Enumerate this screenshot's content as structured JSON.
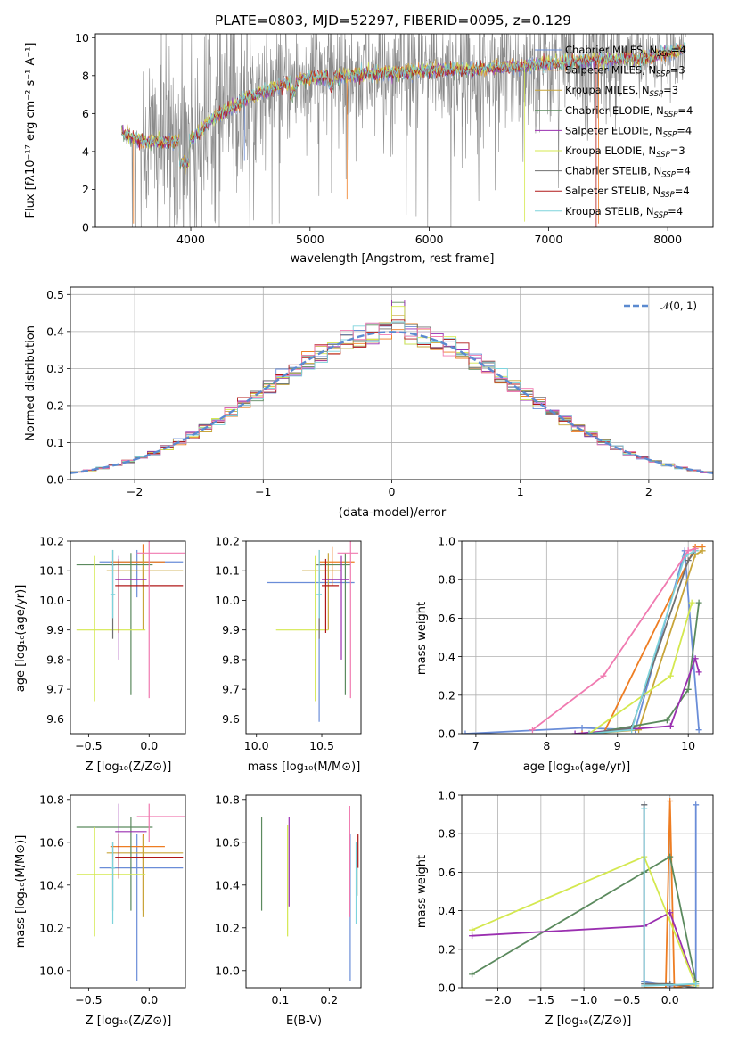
{
  "colors": {
    "chabrier_miles": "#6a8dd8",
    "salpeter_miles": "#ee7d22",
    "kroupa_miles": "#c8a53a",
    "chabrier_elodie": "#5b8a5e",
    "salpeter_elodie": "#9a2fb0",
    "kroupa_elodie": "#d4e84f",
    "chabrier_stelib": "#707070",
    "salpeter_stelib": "#b01818",
    "kroupa_stelib": "#7dd3dc",
    "pink": "#f07ab0",
    "gauss": "#5b8ad0"
  },
  "chart_data": [
    {
      "type": "line",
      "title": "PLATE=0803, MJD=52297, FIBERID=0095, z=0.129",
      "xlabel": "wavelength [Angstrom, rest frame]",
      "ylabel": "Flux [fλ10⁻¹⁷ erg cm⁻² s⁻¹ A⁻¹]",
      "xlim": [
        3200,
        8380
      ],
      "ylim": [
        0,
        10.2
      ],
      "xticks": [
        "4000",
        "5000",
        "6000",
        "7000",
        "8000"
      ],
      "yticks": [
        "0",
        "2",
        "4",
        "6",
        "8",
        "10"
      ],
      "legend_position": "right",
      "series": [
        {
          "name": "Chabrier MILES, N_SSP=4",
          "color": "#6a8dd8"
        },
        {
          "name": "Salpeter MILES, N_SSP=3",
          "color": "#ee7d22"
        },
        {
          "name": "Kroupa MILES, N_SSP=3",
          "color": "#c8a53a"
        },
        {
          "name": "Chabrier ELODIE, N_SSP=4",
          "color": "#5b8a5e"
        },
        {
          "name": "Salpeter ELODIE, N_SSP=4",
          "color": "#9a2fb0"
        },
        {
          "name": "Kroupa ELODIE, N_SSP=3",
          "color": "#d4e84f"
        },
        {
          "name": "Chabrier STELIB, N_SSP=4",
          "color": "#707070"
        },
        {
          "name": "Salpeter STELIB, N_SSP=4",
          "color": "#b01818"
        },
        {
          "name": "Kroupa STELIB, N_SSP=4",
          "color": "#7dd3dc"
        }
      ],
      "continuum": {
        "x": [
          3420,
          3600,
          3800,
          4000,
          4200,
          4500,
          4800,
          5000,
          5300,
          5600,
          6000,
          6300,
          6600,
          7000,
          7400,
          7800,
          8150
        ],
        "y": [
          5.0,
          4.5,
          4.5,
          4.6,
          5.8,
          6.9,
          7.6,
          7.9,
          8.0,
          8.1,
          8.3,
          8.3,
          8.4,
          8.6,
          8.8,
          8.9,
          9.4
        ]
      }
    },
    {
      "type": "histogram",
      "xlabel": "(data-model)/error",
      "ylabel": "Normed distribution",
      "xlim": [
        -2.5,
        2.5
      ],
      "ylim": [
        0,
        0.52
      ],
      "xticks": [
        "−2",
        "−1",
        "0",
        "1",
        "2"
      ],
      "yticks": [
        "0.0",
        "0.1",
        "0.2",
        "0.3",
        "0.4",
        "0.5"
      ],
      "legend": "𝒩(0, 1)",
      "gaussian": {
        "mean": 0,
        "sigma": 1
      },
      "bin_width": 0.1
    },
    {
      "type": "scatter",
      "xlabel": "Z [log₁₀(Z/Z⊙)]",
      "ylabel": "age  [log₁₀(age/yr)]",
      "xlim": [
        -0.65,
        0.3
      ],
      "ylim": [
        9.55,
        10.2
      ],
      "xticks": [
        "−0.5",
        "0.0"
      ],
      "yticks": [
        "9.6",
        "9.7",
        "9.8",
        "9.9",
        "10.0",
        "10.1",
        "10.2"
      ],
      "points": [
        {
          "x": -0.1,
          "y": 10.13,
          "xerr": [
            0.31,
            0.38
          ],
          "yerr": [
            0.12,
            0.04
          ],
          "color": "#6a8dd8"
        },
        {
          "x": -0.05,
          "y": 10.13,
          "xerr": [
            0.27,
            0.18
          ],
          "yerr": [
            0.08,
            0.06
          ],
          "color": "#ee7d22"
        },
        {
          "x": -0.05,
          "y": 10.1,
          "xerr": [
            0.3,
            0.33
          ],
          "yerr": [
            0.2,
            0.06
          ],
          "color": "#c8a53a"
        },
        {
          "x": -0.15,
          "y": 10.12,
          "xerr": [
            0.45,
            0.18
          ],
          "yerr": [
            0.44,
            0.04
          ],
          "color": "#5b8a5e"
        },
        {
          "x": -0.25,
          "y": 10.07,
          "xerr": [
            0.03,
            0.23
          ],
          "yerr": [
            0.27,
            0.08
          ],
          "color": "#9a2fb0"
        },
        {
          "x": -0.45,
          "y": 9.9,
          "xerr": [
            0.15,
            0.42
          ],
          "yerr": [
            0.24,
            0.25
          ],
          "color": "#d4e84f"
        },
        {
          "x": -0.3,
          "y": 10.12,
          "xerr": [
            0.02,
            0.02
          ],
          "yerr": [
            0.25,
            0.05
          ],
          "color": "#707070"
        },
        {
          "x": -0.25,
          "y": 10.05,
          "xerr": [
            0.03,
            0.53
          ],
          "yerr": [
            0.16,
            0.09
          ],
          "color": "#b01818"
        },
        {
          "x": -0.3,
          "y": 10.02,
          "xerr": [
            0.02,
            0.02
          ],
          "yerr": [
            0.08,
            0.15
          ],
          "color": "#7dd3dc"
        },
        {
          "x": 0.0,
          "y": 10.16,
          "xerr": [
            0.1,
            0.3
          ],
          "yerr": [
            0.49,
            0.04
          ],
          "color": "#f07ab0"
        }
      ]
    },
    {
      "type": "scatter",
      "xlabel": "mass [log₁₀(M/M⊙)]",
      "xlim": [
        9.92,
        10.8
      ],
      "ylim": [
        9.55,
        10.2
      ],
      "xticks": [
        "10.0",
        "10.5"
      ],
      "yticks": [
        "9.6",
        "9.7",
        "9.8",
        "9.9",
        "10.0",
        "10.1",
        "10.2"
      ],
      "points": [
        {
          "x": 10.48,
          "y": 10.06,
          "xerr": [
            0.4,
            0.27
          ],
          "yerr": [
            0.47,
            0.04
          ],
          "color": "#6a8dd8"
        },
        {
          "x": 10.58,
          "y": 10.13,
          "xerr": [
            0.1,
            0.17
          ],
          "yerr": [
            0.08,
            0.05
          ],
          "color": "#ee7d22"
        },
        {
          "x": 10.55,
          "y": 10.1,
          "xerr": [
            0.2,
            0.1
          ],
          "yerr": [
            0.2,
            0.06
          ],
          "color": "#c8a53a"
        },
        {
          "x": 10.68,
          "y": 10.12,
          "xerr": [
            0.18,
            0.04
          ],
          "yerr": [
            0.44,
            0.04
          ],
          "color": "#5b8a5e"
        },
        {
          "x": 10.65,
          "y": 10.07,
          "xerr": [
            0.15,
            0.06
          ],
          "yerr": [
            0.27,
            0.08
          ],
          "color": "#9a2fb0"
        },
        {
          "x": 10.45,
          "y": 9.9,
          "xerr": [
            0.3,
            0.1
          ],
          "yerr": [
            0.24,
            0.25
          ],
          "color": "#d4e84f"
        },
        {
          "x": 10.48,
          "y": 10.12,
          "xerr": [
            0.02,
            0.02
          ],
          "yerr": [
            0.25,
            0.05
          ],
          "color": "#707070"
        },
        {
          "x": 10.53,
          "y": 10.05,
          "xerr": [
            0.03,
            0.1
          ],
          "yerr": [
            0.16,
            0.09
          ],
          "color": "#b01818"
        },
        {
          "x": 10.48,
          "y": 10.02,
          "xerr": [
            0.02,
            0.02
          ],
          "yerr": [
            0.08,
            0.15
          ],
          "color": "#7dd3dc"
        },
        {
          "x": 10.72,
          "y": 10.16,
          "xerr": [
            0.1,
            0.06
          ],
          "yerr": [
            0.49,
            0.04
          ],
          "color": "#f07ab0"
        }
      ]
    },
    {
      "type": "line",
      "xlabel": "age  [log₁₀(age/yr)]",
      "ylabel": "mass weight",
      "xlim": [
        6.8,
        10.35
      ],
      "ylim": [
        0,
        1
      ],
      "xticks": [
        "7",
        "8",
        "9",
        "10"
      ],
      "yticks": [
        "0.0",
        "0.2",
        "0.4",
        "0.6",
        "0.8",
        "1.0"
      ],
      "series": [
        {
          "x": [
            6.85,
            8.5,
            9.25,
            9.95,
            10.15
          ],
          "y": [
            0.0,
            0.03,
            0.02,
            0.95,
            0.02
          ],
          "color": "#6a8dd8"
        },
        {
          "x": [
            8.5,
            8.8,
            10.1,
            10.2
          ],
          "y": [
            0.0,
            0.0,
            0.97,
            0.97
          ],
          "color": "#ee7d22"
        },
        {
          "x": [
            8.6,
            9.3,
            10.1,
            10.2
          ],
          "y": [
            0.0,
            0.02,
            0.93,
            0.95
          ],
          "color": "#c8a53a"
        },
        {
          "x": [
            8.6,
            9.7,
            10.0,
            10.15
          ],
          "y": [
            0.0,
            0.07,
            0.23,
            0.68
          ],
          "color": "#5b8a5e"
        },
        {
          "x": [
            8.4,
            9.75,
            10.1,
            10.15
          ],
          "y": [
            0.0,
            0.04,
            0.39,
            0.32
          ],
          "color": "#9a2fb0"
        },
        {
          "x": [
            8.6,
            9.75,
            10.05
          ],
          "y": [
            0.0,
            0.3,
            0.68
          ],
          "color": "#d4e84f"
        },
        {
          "x": [
            8.6,
            9.2,
            10.0,
            10.1
          ],
          "y": [
            0.0,
            0.03,
            0.9,
            0.95
          ],
          "color": "#707070"
        },
        {
          "x": [
            8.6,
            9.2,
            9.95,
            10.1
          ],
          "y": [
            0.0,
            0.02,
            0.92,
            0.95
          ],
          "color": "#7dd3dc"
        },
        {
          "x": [
            7.8,
            8.8,
            10.0,
            10.1
          ],
          "y": [
            0.02,
            0.3,
            0.95,
            0.96
          ],
          "color": "#f07ab0"
        }
      ]
    },
    {
      "type": "scatter",
      "xlabel": "Z [log₁₀(Z/Z⊙)]",
      "ylabel": "mass [log₁₀(M/M⊙)]",
      "xlim": [
        -0.65,
        0.3
      ],
      "ylim": [
        9.92,
        10.82
      ],
      "xticks": [
        "−0.5",
        "0.0"
      ],
      "yticks": [
        "10.0",
        "10.2",
        "10.4",
        "10.6",
        "10.8"
      ],
      "points": [
        {
          "x": -0.1,
          "y": 10.48,
          "xerr": [
            0.31,
            0.38
          ],
          "yerr": [
            0.53,
            0.16
          ],
          "color": "#6a8dd8"
        },
        {
          "x": -0.05,
          "y": 10.58,
          "xerr": [
            0.27,
            0.18
          ],
          "yerr": [
            0.3,
            0.06
          ],
          "color": "#ee7d22"
        },
        {
          "x": -0.05,
          "y": 10.55,
          "xerr": [
            0.3,
            0.33
          ],
          "yerr": [
            0.3,
            0.08
          ],
          "color": "#c8a53a"
        },
        {
          "x": -0.15,
          "y": 10.67,
          "xerr": [
            0.45,
            0.18
          ],
          "yerr": [
            0.39,
            0.05
          ],
          "color": "#5b8a5e"
        },
        {
          "x": -0.25,
          "y": 10.65,
          "xerr": [
            0.03,
            0.23
          ],
          "yerr": [
            0.16,
            0.13
          ],
          "color": "#9a2fb0"
        },
        {
          "x": -0.45,
          "y": 10.45,
          "xerr": [
            0.15,
            0.42
          ],
          "yerr": [
            0.29,
            0.22
          ],
          "color": "#d4e84f"
        },
        {
          "x": -0.3,
          "y": 10.48,
          "xerr": [
            0.02,
            0.02
          ],
          "yerr": [
            0.2,
            0.12
          ],
          "color": "#707070"
        },
        {
          "x": -0.25,
          "y": 10.53,
          "xerr": [
            0.03,
            0.53
          ],
          "yerr": [
            0.1,
            0.11
          ],
          "color": "#b01818"
        },
        {
          "x": -0.3,
          "y": 10.48,
          "xerr": [
            0.02,
            0.02
          ],
          "yerr": [
            0.26,
            0.12
          ],
          "color": "#7dd3dc"
        },
        {
          "x": 0.0,
          "y": 10.72,
          "xerr": [
            0.1,
            0.3
          ],
          "yerr": [
            0.12,
            0.06
          ],
          "color": "#f07ab0"
        }
      ]
    },
    {
      "type": "scatter",
      "xlabel": "E(B-V)",
      "xlim": [
        0.03,
        0.265
      ],
      "ylim": [
        9.92,
        10.82
      ],
      "xticks": [
        "0.1",
        "0.2"
      ],
      "yticks": [
        "10.0",
        "10.2",
        "10.4",
        "10.6",
        "10.8"
      ],
      "points": [
        {
          "x": 0.062,
          "y": 10.5,
          "yerr": [
            0.22,
            0.22
          ],
          "color": "#5b8a5e"
        },
        {
          "x": 0.115,
          "y": 10.42,
          "yerr": [
            0.26,
            0.26
          ],
          "color": "#d4e84f"
        },
        {
          "x": 0.118,
          "y": 10.5,
          "yerr": [
            0.2,
            0.22
          ],
          "color": "#9a2fb0"
        },
        {
          "x": 0.243,
          "y": 10.48,
          "yerr": [
            0.53,
            0.16
          ],
          "color": "#6a8dd8"
        },
        {
          "x": 0.242,
          "y": 10.55,
          "yerr": [
            0.3,
            0.22
          ],
          "color": "#f07ab0"
        },
        {
          "x": 0.255,
          "y": 10.48,
          "yerr": [
            0.26,
            0.12
          ],
          "color": "#7dd3dc"
        },
        {
          "x": 0.257,
          "y": 10.55,
          "yerr": [
            0.2,
            0.08
          ],
          "color": "#5b8a5e"
        },
        {
          "x": 0.259,
          "y": 10.58,
          "yerr": [
            0.1,
            0.06
          ],
          "color": "#b01818"
        }
      ]
    },
    {
      "type": "line",
      "xlabel": "Z [log₁₀(Z/Z⊙)]",
      "ylabel": "mass weight",
      "xlim": [
        -2.42,
        0.5
      ],
      "ylim": [
        0,
        1
      ],
      "xticks": [
        "−2.0",
        "−1.5",
        "−1.0",
        "−0.5",
        "0.0"
      ],
      "yticks": [
        "0.0",
        "0.2",
        "0.4",
        "0.6",
        "0.8",
        "1.0"
      ],
      "series": [
        {
          "x": [
            -0.3,
            -0.3,
            0.0,
            0.3,
            0.3
          ],
          "y": [
            0.95,
            0.03,
            0.01,
            0.02,
            0.95
          ],
          "color": "#6a8dd8"
        },
        {
          "x": [
            -0.3,
            -0.05,
            0.0,
            0.05,
            0.3
          ],
          "y": [
            0.0,
            0.0,
            0.97,
            0.0,
            0.02
          ],
          "color": "#ee7d22"
        },
        {
          "x": [
            -2.3,
            -0.3,
            0.0,
            0.3
          ],
          "y": [
            0.07,
            0.6,
            0.68,
            0.03
          ],
          "color": "#5b8a5e"
        },
        {
          "x": [
            -2.3,
            -0.3,
            0.0,
            0.3
          ],
          "y": [
            0.27,
            0.32,
            0.39,
            0.01
          ],
          "color": "#9a2fb0"
        },
        {
          "x": [
            -2.3,
            -0.3,
            0.3
          ],
          "y": [
            0.3,
            0.68,
            0.01
          ],
          "color": "#d4e84f"
        },
        {
          "x": [
            -0.3,
            -0.3,
            0.0,
            0.3
          ],
          "y": [
            0.95,
            0.02,
            0.02,
            0.0
          ],
          "color": "#707070"
        },
        {
          "x": [
            -0.3,
            -0.3,
            0.3
          ],
          "y": [
            0.93,
            0.01,
            0.02
          ],
          "color": "#7dd3dc"
        }
      ]
    }
  ]
}
